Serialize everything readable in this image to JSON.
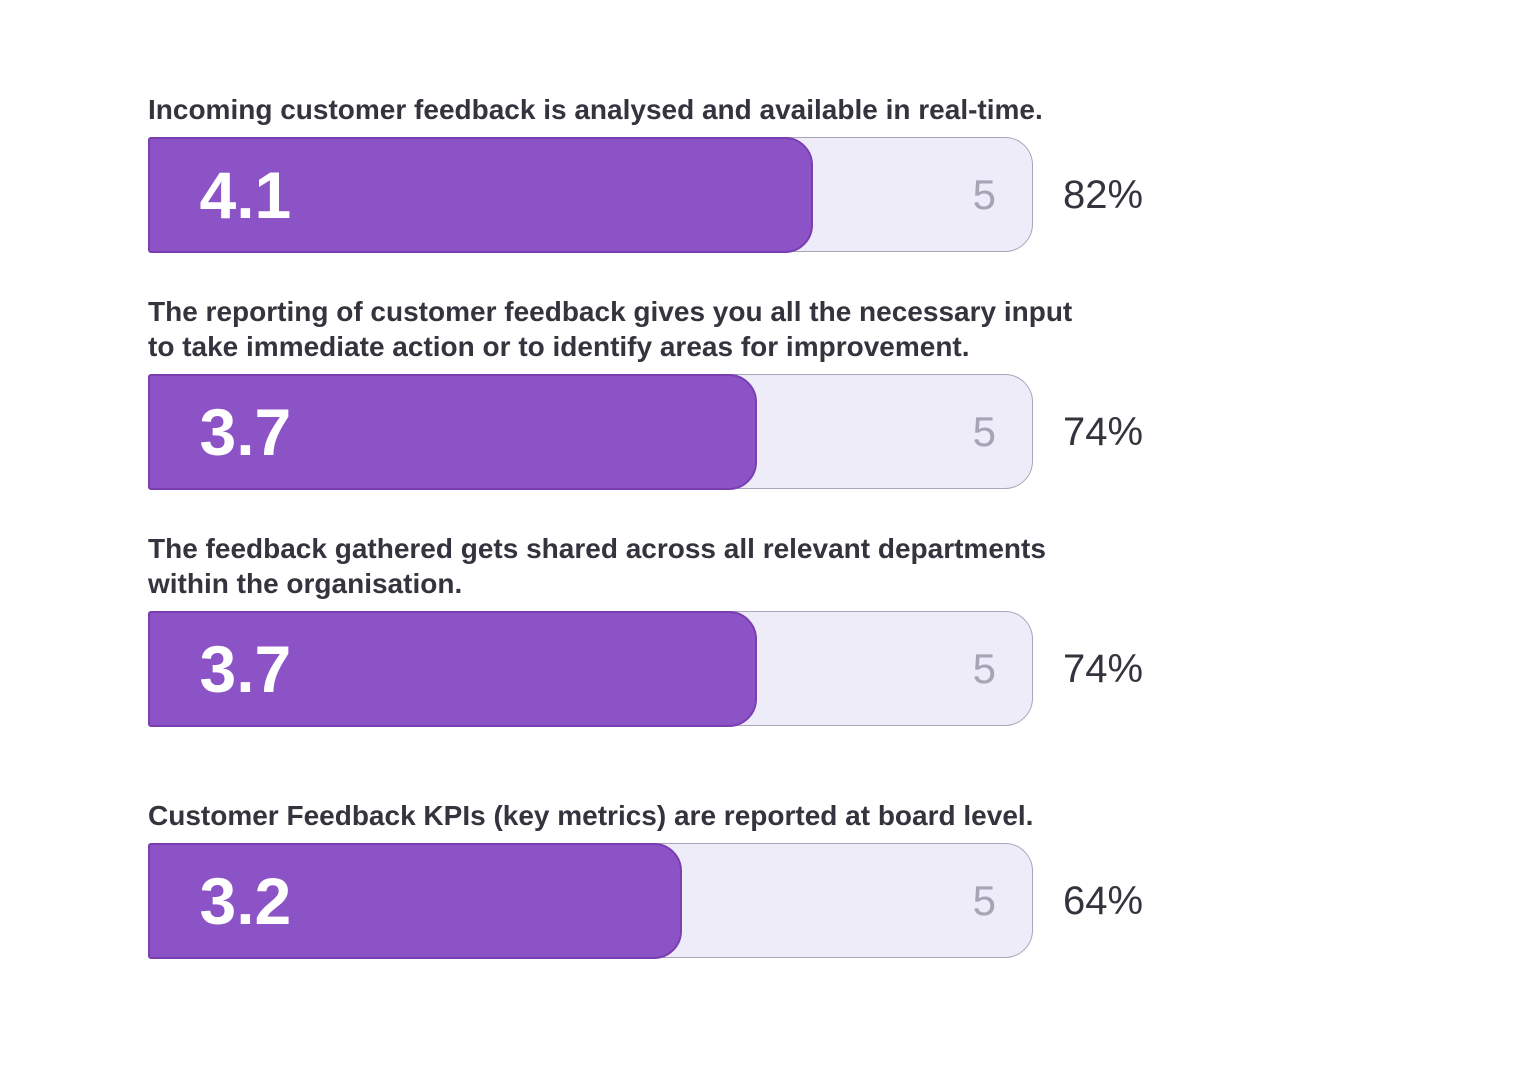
{
  "chart_data": {
    "type": "bar",
    "orientation": "horizontal",
    "scale": {
      "min": 0,
      "max": 5
    },
    "rows": [
      {
        "title": "Incoming customer feedback is analysed and available in real-time.",
        "score": 4.1,
        "score_label": "4.1",
        "scale_max_label": "5",
        "percent_label": "82%",
        "fill_pct": 75.4
      },
      {
        "title": "The reporting of customer feedback gives you all the necessary input\nto take immediate action or to identify areas for improvement.",
        "score": 3.7,
        "score_label": "3.7",
        "scale_max_label": "5",
        "percent_label": "74%",
        "fill_pct": 69.0
      },
      {
        "title": "The feedback gathered gets shared across all relevant departments\nwithin the organisation.",
        "score": 3.7,
        "score_label": "3.7",
        "scale_max_label": "5",
        "percent_label": "74%",
        "fill_pct": 69.0
      },
      {
        "title": "Customer Feedback KPIs (key metrics) are reported at board level.",
        "score": 3.2,
        "score_label": "3.2",
        "scale_max_label": "5",
        "percent_label": "64%",
        "fill_pct": 60.5
      }
    ]
  },
  "colors": {
    "bar_fill": "#8c53c7",
    "bar_border": "#7a3eb0",
    "track_fill": "#edecf8",
    "track_border": "#a8a5ba",
    "title_text": "#34343e",
    "percent_text": "#34343e",
    "scale_text": "#a7a4b6",
    "score_text": "#ffffff",
    "background": "#ffffff"
  }
}
